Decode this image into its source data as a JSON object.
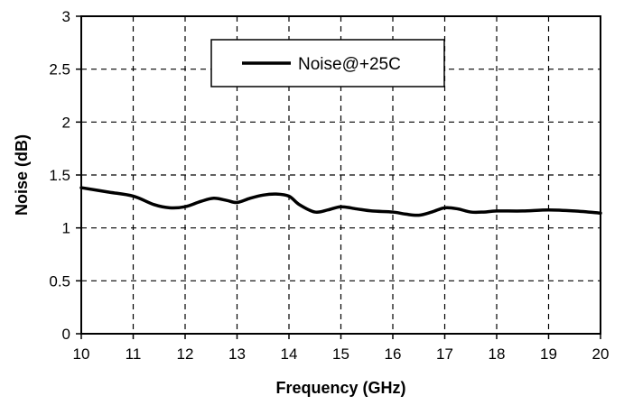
{
  "chart_data": {
    "type": "line",
    "title": "",
    "xlabel": "Frequency (GHz)",
    "ylabel": "Noise (dB)",
    "xlim": [
      10,
      20
    ],
    "ylim": [
      0,
      3
    ],
    "xticks": [
      10,
      11,
      12,
      13,
      14,
      15,
      16,
      17,
      18,
      19,
      20
    ],
    "yticks": [
      0,
      0.5,
      1,
      1.5,
      2,
      2.5,
      3
    ],
    "xtick_labels": [
      "10",
      "11",
      "12",
      "13",
      "14",
      "15",
      "16",
      "17",
      "18",
      "19",
      "20"
    ],
    "ytick_labels": [
      "0",
      "0.5",
      "1",
      "1.5",
      "2",
      "2.5",
      "3"
    ],
    "grid": true,
    "grid_style": "dashed",
    "legend_position": "top-center",
    "series": [
      {
        "name": "Noise@+25C",
        "color": "#000000",
        "x": [
          10,
          10.5,
          11,
          11.4,
          11.7,
          12,
          12.3,
          12.55,
          12.8,
          13,
          13.25,
          13.5,
          13.75,
          14,
          14.2,
          14.5,
          14.75,
          15,
          15.3,
          15.6,
          16,
          16.25,
          16.5,
          16.75,
          17,
          17.25,
          17.5,
          17.75,
          18,
          18.5,
          19,
          19.5,
          20
        ],
        "y": [
          1.38,
          1.34,
          1.3,
          1.22,
          1.19,
          1.2,
          1.25,
          1.28,
          1.26,
          1.24,
          1.28,
          1.31,
          1.32,
          1.3,
          1.22,
          1.15,
          1.17,
          1.2,
          1.18,
          1.16,
          1.15,
          1.13,
          1.12,
          1.15,
          1.19,
          1.18,
          1.15,
          1.15,
          1.16,
          1.16,
          1.17,
          1.16,
          1.14
        ]
      }
    ]
  }
}
